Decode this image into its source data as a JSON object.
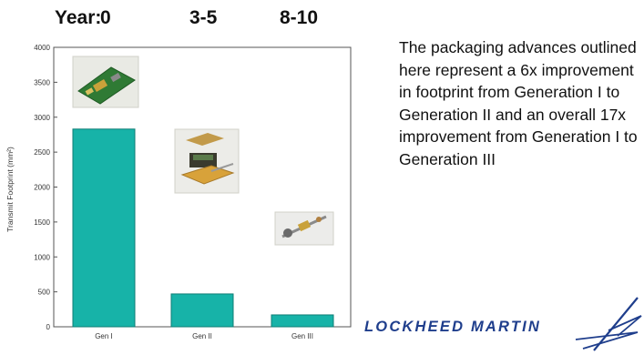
{
  "header": {
    "year_label": "Year:",
    "periods": [
      "0",
      "3-5",
      "8-10"
    ]
  },
  "description": "The packaging advances outlined here represent a 6x improvement in footprint from Generation I to Generation II and an overall 17x improvement from Generation I to Generation III",
  "logo": {
    "text": "LOCKHEED MARTIN"
  },
  "colors": {
    "bar": "#17b3a8",
    "bar_edge": "#0f7d75",
    "logo": "#1f3e8c"
  },
  "chart_data": {
    "type": "bar",
    "categories": [
      "Gen I",
      "Gen II",
      "Gen III"
    ],
    "values": [
      2830,
      470,
      170
    ],
    "ylabel": "Transmit Footprint (mm²)",
    "ylim": [
      0,
      4000
    ],
    "yticks": [
      0,
      500,
      1000,
      1500,
      2000,
      2500,
      3000,
      3500,
      4000
    ],
    "grid": false,
    "images": [
      "gen-1-board-photo",
      "gen-2-module-photo",
      "gen-3-device-photo"
    ]
  }
}
